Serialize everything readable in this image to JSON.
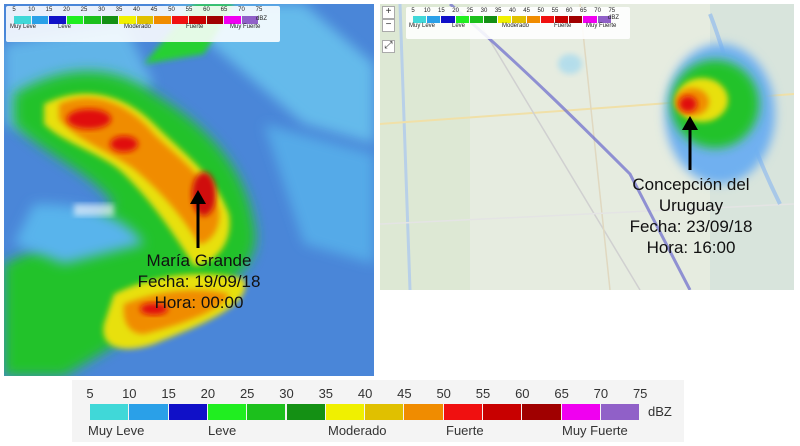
{
  "scale": {
    "ticks": [
      "5",
      "10",
      "15",
      "20",
      "25",
      "30",
      "35",
      "40",
      "45",
      "50",
      "55",
      "60",
      "65",
      "70",
      "75"
    ],
    "unit": "dBZ",
    "colors": [
      "#40d8d8",
      "#2aa0e8",
      "#1010c8",
      "#20ee20",
      "#1cc01c",
      "#149014",
      "#f0f000",
      "#e0c000",
      "#f08c00",
      "#f01010",
      "#c80000",
      "#a00000",
      "#f000f0",
      "#9060c8"
    ],
    "categories": [
      "Muy Leve",
      "Leve",
      "Moderado",
      "Fuerte",
      "Muy Fuerte"
    ]
  },
  "left_map": {
    "place": "María Grande",
    "date_line": "Fecha: 19/09/18",
    "time_line": "Hora: 00:00"
  },
  "right_map": {
    "place_line1": "Concepción del",
    "place_line2": "Uruguay",
    "date_line": "Fecha: 23/09/18",
    "time_line": "Hora: 16:00",
    "zoom_in": "+",
    "zoom_out": "−",
    "fullscreen": "⤢"
  }
}
